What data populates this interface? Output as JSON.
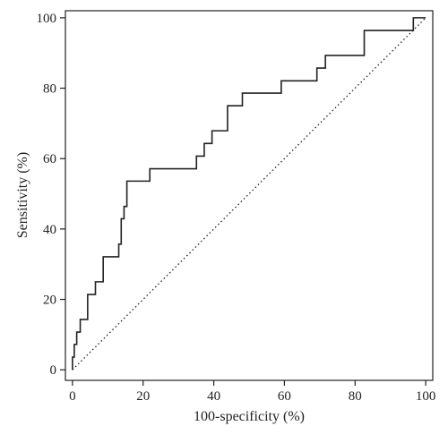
{
  "chart_data": {
    "type": "line",
    "title": "",
    "xlabel": "100-specificity (%)",
    "ylabel": "Sensitivity (%)",
    "xlim": [
      -2,
      102
    ],
    "ylim": [
      -3,
      102
    ],
    "xticks": [
      0,
      20,
      40,
      60,
      80,
      100
    ],
    "yticks": [
      0,
      20,
      40,
      60,
      80,
      100
    ],
    "grid": false,
    "legend": "none",
    "series": [
      {
        "style": "solid",
        "color": "#222222",
        "x": [
          0,
          0,
          0.5,
          0.5,
          1.2,
          1.2,
          2.2,
          2.2,
          4.3,
          4.3,
          6.5,
          6.5,
          8.7,
          8.7,
          13.1,
          13.1,
          13.8,
          13.8,
          14.6,
          14.6,
          15.4,
          15.4,
          21.9,
          21.9,
          35.1,
          35.1,
          37.3,
          37.3,
          39.5,
          39.5,
          43.9,
          43.9,
          48.1,
          48.1,
          59.1,
          59.1,
          69.2,
          69.2,
          71.6,
          71.6,
          82.6,
          82.6,
          96.5,
          96.5,
          100
        ],
        "y": [
          0,
          3.6,
          3.6,
          7.2,
          7.2,
          10.7,
          10.7,
          14.3,
          14.3,
          21.4,
          21.4,
          25.0,
          25.0,
          32.1,
          32.1,
          35.7,
          35.7,
          42.9,
          42.9,
          46.4,
          46.4,
          53.6,
          53.6,
          57.1,
          57.1,
          60.7,
          60.7,
          64.3,
          64.3,
          67.9,
          67.9,
          75.0,
          75.0,
          78.6,
          78.6,
          82.1,
          82.1,
          85.7,
          85.7,
          89.3,
          89.3,
          96.4,
          96.4,
          100,
          100
        ]
      },
      {
        "style": "dotted",
        "color": "#222222",
        "x": [
          0,
          100
        ],
        "y": [
          0,
          100
        ]
      }
    ]
  }
}
